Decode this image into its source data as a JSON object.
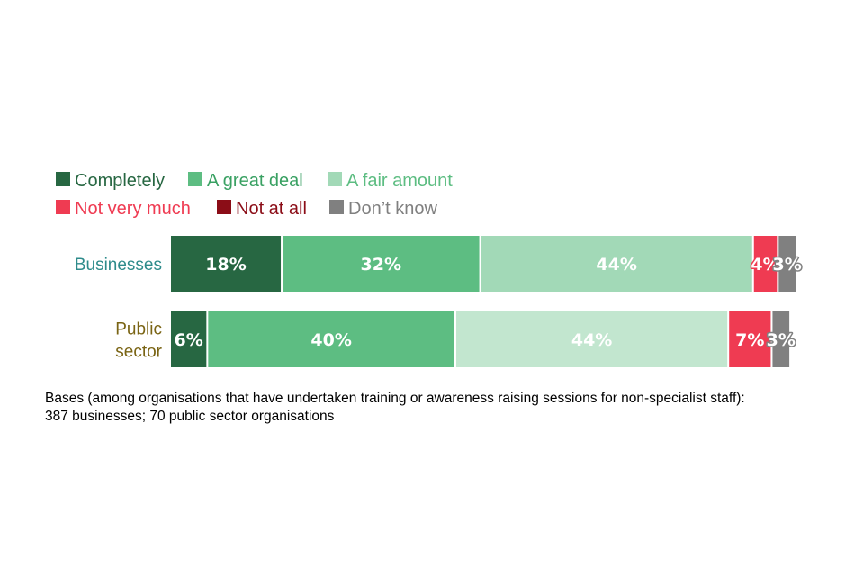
{
  "chart_data": {
    "type": "bar",
    "orientation": "horizontal",
    "stacked": true,
    "categories": [
      "Businesses",
      "Public\nsector"
    ],
    "category_colors": [
      "#2e8b8b",
      "#7a6414"
    ],
    "series": [
      {
        "name": "Completely",
        "color": "#276742",
        "values": [
          18,
          6
        ],
        "labels": [
          "18%",
          "6%"
        ]
      },
      {
        "name": "A great deal",
        "color": "#5dbd82",
        "values": [
          32,
          40
        ],
        "labels": [
          "32%",
          "40%"
        ]
      },
      {
        "name": "A fair amount",
        "color": [
          "#a2d9b7",
          "#c2e6cf"
        ],
        "legend_color": "#a2d9b7",
        "values": [
          44,
          44
        ],
        "labels": [
          "44%",
          "44%"
        ]
      },
      {
        "name": "Not very much",
        "color": "#ef3b52",
        "values": [
          4,
          7
        ],
        "labels": [
          "4%",
          "7%"
        ]
      },
      {
        "name": "Not at all",
        "color": "#8b0d17",
        "values": [
          0,
          0
        ],
        "labels": [
          "",
          ""
        ]
      },
      {
        "name": "Don’t know",
        "color": "#808080",
        "values": [
          3,
          3
        ],
        "labels": [
          "3%",
          "3%"
        ]
      }
    ],
    "legend_position": "top-left",
    "legend_text_colors": [
      "#276742",
      "#3aa163",
      "#5dbd82",
      "#ef3b52",
      "#8b0d17",
      "#808080"
    ],
    "xlim": [
      0,
      101
    ],
    "grid": false
  },
  "note": {
    "line1": "Bases (among organisations that have undertaken training or awareness raising sessions for non-specialist staff):",
    "line2": "387 businesses; 70 public sector organisations"
  }
}
